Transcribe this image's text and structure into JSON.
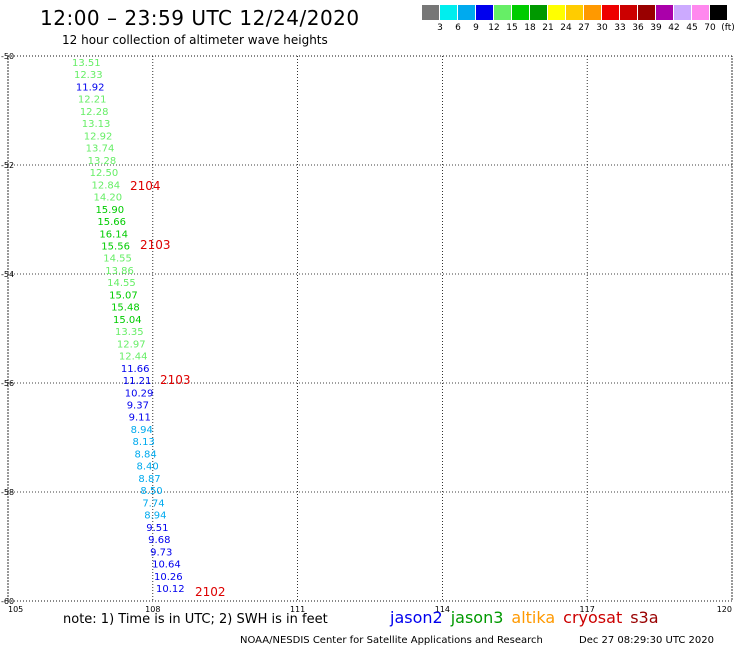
{
  "header": {
    "title": "12:00 – 23:59 UTC 12/24/2020",
    "subtitle": "12 hour collection of altimeter wave heights"
  },
  "colorbar": {
    "colors": [
      "#777777",
      "#00eeee",
      "#00aaee",
      "#0000ee",
      "#66ee66",
      "#00cc00",
      "#009900",
      "#ffff00",
      "#ffcc00",
      "#ff9900",
      "#ee0000",
      "#cc0000",
      "#990000",
      "#aa00aa",
      "#ccaaff",
      "#ff88ee",
      "#000000"
    ],
    "labels": [
      "3",
      "6",
      "9",
      "12",
      "15",
      "18",
      "21",
      "24",
      "27",
      "30",
      "33",
      "36",
      "39",
      "42",
      "45",
      "70",
      "(ft)"
    ]
  },
  "map": {
    "lon_ticks": [
      "105",
      "108",
      "111",
      "114",
      "117",
      "120"
    ],
    "lat_ticks": [
      "-50",
      "-52",
      "-54",
      "-56",
      "-58",
      "-60"
    ],
    "lon_range": [
      105,
      120
    ],
    "lat_range": [
      -50,
      -60
    ],
    "grid": "dotted",
    "observations": [
      {
        "t": "13.51",
        "c": "#66ee66"
      },
      {
        "t": "12.33",
        "c": "#66ee66"
      },
      {
        "t": "11.92",
        "c": "#0000ee"
      },
      {
        "t": "12.21",
        "c": "#66ee66"
      },
      {
        "t": "12.28",
        "c": "#66ee66"
      },
      {
        "t": "13.13",
        "c": "#66ee66"
      },
      {
        "t": "12.92",
        "c": "#66ee66"
      },
      {
        "t": "13.74",
        "c": "#66ee66"
      },
      {
        "t": "13.28",
        "c": "#66ee66"
      },
      {
        "t": "12.50",
        "c": "#66ee66"
      },
      {
        "t": "12.84",
        "c": "#66ee66"
      },
      {
        "t": "14.20",
        "c": "#66ee66"
      },
      {
        "t": "15.90",
        "c": "#00cc00"
      },
      {
        "t": "15.66",
        "c": "#00cc00"
      },
      {
        "t": "16.14",
        "c": "#00cc00"
      },
      {
        "t": "15.56",
        "c": "#00cc00"
      },
      {
        "t": "14.55",
        "c": "#66ee66"
      },
      {
        "t": "13.86",
        "c": "#66ee66"
      },
      {
        "t": "14.55",
        "c": "#66ee66"
      },
      {
        "t": "15.07",
        "c": "#00cc00"
      },
      {
        "t": "15.48",
        "c": "#00cc00"
      },
      {
        "t": "15.04",
        "c": "#00cc00"
      },
      {
        "t": "13.35",
        "c": "#66ee66"
      },
      {
        "t": "12.97",
        "c": "#66ee66"
      },
      {
        "t": "12.44",
        "c": "#66ee66"
      },
      {
        "t": "11.66",
        "c": "#0000ee"
      },
      {
        "t": "11.21",
        "c": "#0000ee"
      },
      {
        "t": "10.29",
        "c": "#0000ee"
      },
      {
        "t": "9.37",
        "c": "#0000ee"
      },
      {
        "t": "9.11",
        "c": "#0000ee"
      },
      {
        "t": "8.94",
        "c": "#00aaee"
      },
      {
        "t": "8.13",
        "c": "#00aaee"
      },
      {
        "t": "8.84",
        "c": "#00aaee"
      },
      {
        "t": "8.40",
        "c": "#00aaee"
      },
      {
        "t": "8.87",
        "c": "#00aaee"
      },
      {
        "t": "8.50",
        "c": "#00aaee"
      },
      {
        "t": "7.74",
        "c": "#00aaee"
      },
      {
        "t": "8.94",
        "c": "#00aaee"
      },
      {
        "t": "9.51",
        "c": "#0000ee"
      },
      {
        "t": "9.68",
        "c": "#0000ee"
      },
      {
        "t": "9.73",
        "c": "#0000ee"
      },
      {
        "t": "10.64",
        "c": "#0000ee"
      },
      {
        "t": "10.26",
        "c": "#0000ee"
      },
      {
        "t": "10.12",
        "c": "#0000ee"
      }
    ],
    "time_labels": [
      "2104",
      "2103",
      "2103",
      "2102"
    ]
  },
  "footer": {
    "note": "note: 1) Time is in UTC; 2) SWH is in feet",
    "satellites": [
      {
        "name": "jason2",
        "color": "#0000ee"
      },
      {
        "name": "jason3",
        "color": "#009900"
      },
      {
        "name": "altika",
        "color": "#ff9900"
      },
      {
        "name": "cryosat",
        "color": "#cc0000"
      },
      {
        "name": "s3a",
        "color": "#990000"
      }
    ],
    "credit": "NOAA/NESDIS Center for Satellite Applications and Research",
    "timestamp": "Dec 27 08:29:30 UTC 2020"
  }
}
